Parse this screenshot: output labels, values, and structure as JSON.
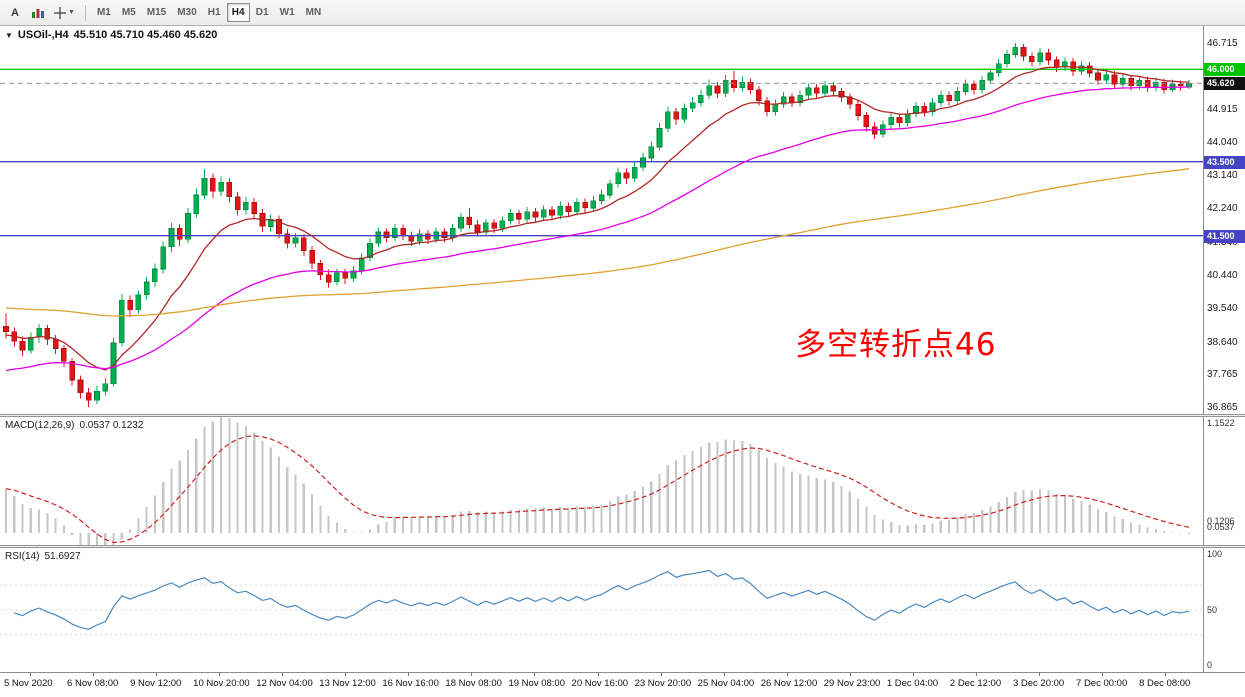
{
  "toolbar": {
    "annotate_label": "A",
    "timeframes": [
      "M1",
      "M5",
      "M15",
      "M30",
      "H1",
      "H4",
      "D1",
      "W1",
      "MN"
    ],
    "active_timeframe": "H4"
  },
  "chart": {
    "title_symbol": "USOil-,H4",
    "title_ohlc": "45.510 45.710 45.460 45.620",
    "annotation": "多空转折点46",
    "annotation_color": "#ff0000"
  },
  "chart_data": {
    "type": "candlestick",
    "symbol": "USOil-",
    "timeframe": "H4",
    "title": "USOil-,H4 45.510 45.710 45.460 45.620",
    "price_range": {
      "min": 36.68,
      "max": 47.17
    },
    "price_axis_labels": [
      "46.715",
      "44.915",
      "44.040",
      "43.140",
      "42.240",
      "41.340",
      "40.440",
      "39.540",
      "38.640",
      "37.765",
      "36.865"
    ],
    "price_badges": [
      {
        "label": "46.000",
        "value": 46.0,
        "color": "#00c400"
      },
      {
        "label": "45.620",
        "value": 45.62,
        "color": "#111111"
      },
      {
        "label": "43.500",
        "value": 43.5,
        "color": "#4545c4"
      },
      {
        "label": "41.500",
        "value": 41.5,
        "color": "#4545c4"
      }
    ],
    "hlines": [
      {
        "value": 46.0,
        "color": "#00cc00"
      },
      {
        "value": 43.5,
        "color": "#4545c4"
      },
      {
        "value": 41.5,
        "color": "#4545c4"
      }
    ],
    "current_price": 45.62,
    "colors": {
      "up": "#00b050",
      "up_border": "#00813a",
      "down": "#e01515",
      "down_border": "#9c0d0d"
    },
    "moving_averages": [
      {
        "name": "ma-fast",
        "color": "#b02828",
        "alpha": 0.16,
        "seed": 38.8
      },
      {
        "name": "ma-medium",
        "color": "#e300e3",
        "alpha": 0.05,
        "seed": 37.8
      },
      {
        "name": "ma-slow",
        "color": "#dfa232",
        "alpha": 0.012,
        "seed": 39.55
      }
    ],
    "indicators": {
      "macd": {
        "label": "MACD(12,26,9)",
        "values_text": "0.0537 0.1232",
        "fast": 12,
        "slow": 26,
        "signal": 9,
        "seed_fast": 39.2,
        "seed_slow": 38.7,
        "range": [
          -0.1206,
          1.1522
        ],
        "axis_labels": [
          {
            "text": "1.1522",
            "value": 1.1522
          },
          {
            "text": "0.1206",
            "value": 0.1206
          },
          {
            "text": "0.0537",
            "value": 0.0537
          }
        ],
        "histogram_color": "#c6c6c6",
        "signal_color": "#cc2222"
      },
      "rsi": {
        "label": "RSI(14)",
        "value_text": "51.6927",
        "period": 14,
        "range": [
          0,
          100
        ],
        "levels": [
          30,
          50,
          70
        ],
        "axis_labels": [
          {
            "text": "100",
            "value": 100
          },
          {
            "text": "50",
            "value": 50
          },
          {
            "text": "0",
            "value": 0
          }
        ],
        "color": "#4a8abf"
      }
    },
    "time_labels": [
      "5 Nov 2020",
      "6 Nov 08:00",
      "9 Nov 12:00",
      "10 Nov 20:00",
      "12 Nov 04:00",
      "13 Nov 12:00",
      "16 Nov 16:00",
      "18 Nov 08:00",
      "19 Nov 08:00",
      "20 Nov 16:00",
      "23 Nov 20:00",
      "25 Nov 04:00",
      "26 Nov 12:00",
      "29 Nov 23:00",
      "1 Dec 04:00",
      "2 Dec 12:00",
      "3 Dec 20:00",
      "7 Dec 00:00",
      "8 Dec 08:00"
    ],
    "candles": [
      [
        39.05,
        39.4,
        38.72,
        38.9
      ],
      [
        38.9,
        39.02,
        38.5,
        38.65
      ],
      [
        38.65,
        38.78,
        38.25,
        38.4
      ],
      [
        38.4,
        38.88,
        38.32,
        38.75
      ],
      [
        38.75,
        39.12,
        38.6,
        39.0
      ],
      [
        39.0,
        39.08,
        38.55,
        38.7
      ],
      [
        38.7,
        38.82,
        38.3,
        38.45
      ],
      [
        38.45,
        38.55,
        37.95,
        38.1
      ],
      [
        38.1,
        38.2,
        37.45,
        37.6
      ],
      [
        37.6,
        37.72,
        37.1,
        37.25
      ],
      [
        37.25,
        37.38,
        36.865,
        37.05
      ],
      [
        37.05,
        37.45,
        36.95,
        37.3
      ],
      [
        37.3,
        37.65,
        37.18,
        37.5
      ],
      [
        37.5,
        38.75,
        37.42,
        38.6
      ],
      [
        38.6,
        39.92,
        38.5,
        39.75
      ],
      [
        39.75,
        39.88,
        39.3,
        39.5
      ],
      [
        39.5,
        40.02,
        39.38,
        39.9
      ],
      [
        39.9,
        40.38,
        39.78,
        40.25
      ],
      [
        40.25,
        40.75,
        40.12,
        40.6
      ],
      [
        40.6,
        41.35,
        40.48,
        41.2
      ],
      [
        41.2,
        41.85,
        41.05,
        41.7
      ],
      [
        41.7,
        41.82,
        41.22,
        41.4
      ],
      [
        41.4,
        42.25,
        41.3,
        42.1
      ],
      [
        42.1,
        42.78,
        41.98,
        42.6
      ],
      [
        42.6,
        43.3,
        42.48,
        43.05
      ],
      [
        43.05,
        43.18,
        42.52,
        42.7
      ],
      [
        42.7,
        43.1,
        42.58,
        42.95
      ],
      [
        42.95,
        43.05,
        42.4,
        42.55
      ],
      [
        42.55,
        42.68,
        42.05,
        42.2
      ],
      [
        42.2,
        42.55,
        42.08,
        42.4
      ],
      [
        42.4,
        42.52,
        41.95,
        42.1
      ],
      [
        42.1,
        42.22,
        41.6,
        41.75
      ],
      [
        41.75,
        42.08,
        41.62,
        41.95
      ],
      [
        41.95,
        42.05,
        41.42,
        41.55
      ],
      [
        41.55,
        41.68,
        41.15,
        41.3
      ],
      [
        41.3,
        41.58,
        41.18,
        41.45
      ],
      [
        41.45,
        41.55,
        40.95,
        41.1
      ],
      [
        41.1,
        41.22,
        40.6,
        40.75
      ],
      [
        40.75,
        40.85,
        40.3,
        40.45
      ],
      [
        40.45,
        40.58,
        40.1,
        40.25
      ],
      [
        40.25,
        40.62,
        40.15,
        40.5
      ],
      [
        40.5,
        40.6,
        40.2,
        40.35
      ],
      [
        40.35,
        40.68,
        40.25,
        40.55
      ],
      [
        40.55,
        41.02,
        40.45,
        40.9
      ],
      [
        40.9,
        41.42,
        40.8,
        41.3
      ],
      [
        41.3,
        41.72,
        41.2,
        41.6
      ],
      [
        41.6,
        41.7,
        41.32,
        41.45
      ],
      [
        41.45,
        41.82,
        41.35,
        41.7
      ],
      [
        41.7,
        41.8,
        41.38,
        41.5
      ],
      [
        41.5,
        41.62,
        41.22,
        41.35
      ],
      [
        41.35,
        41.68,
        41.25,
        41.55
      ],
      [
        41.55,
        41.65,
        41.28,
        41.4
      ],
      [
        41.4,
        41.72,
        41.3,
        41.6
      ],
      [
        41.6,
        41.7,
        41.32,
        41.45
      ],
      [
        41.45,
        41.82,
        41.35,
        41.7
      ],
      [
        41.7,
        42.12,
        41.6,
        42.0
      ],
      [
        42.0,
        42.25,
        41.7,
        41.8
      ],
      [
        41.8,
        41.92,
        41.48,
        41.6
      ],
      [
        41.6,
        41.95,
        41.5,
        41.85
      ],
      [
        41.85,
        41.95,
        41.58,
        41.7
      ],
      [
        41.7,
        42.02,
        41.6,
        41.9
      ],
      [
        41.9,
        42.22,
        41.8,
        42.1
      ],
      [
        42.1,
        42.2,
        41.82,
        41.95
      ],
      [
        41.95,
        42.28,
        41.85,
        42.15
      ],
      [
        42.15,
        42.25,
        41.88,
        42.0
      ],
      [
        42.0,
        42.32,
        41.9,
        42.2
      ],
      [
        42.2,
        42.3,
        41.92,
        42.05
      ],
      [
        42.05,
        42.42,
        41.95,
        42.3
      ],
      [
        42.3,
        42.4,
        42.02,
        42.15
      ],
      [
        42.15,
        42.52,
        42.05,
        42.4
      ],
      [
        42.4,
        42.5,
        42.12,
        42.25
      ],
      [
        42.25,
        42.58,
        42.15,
        42.45
      ],
      [
        42.45,
        42.75,
        42.35,
        42.6
      ],
      [
        42.6,
        43.02,
        42.5,
        42.9
      ],
      [
        42.9,
        43.35,
        42.8,
        43.2
      ],
      [
        43.2,
        43.32,
        42.9,
        43.05
      ],
      [
        43.05,
        43.48,
        42.95,
        43.35
      ],
      [
        43.35,
        43.75,
        43.25,
        43.6
      ],
      [
        43.6,
        44.05,
        43.5,
        43.9
      ],
      [
        43.9,
        44.55,
        43.8,
        44.4
      ],
      [
        44.4,
        45.0,
        44.3,
        44.85
      ],
      [
        44.85,
        44.95,
        44.5,
        44.65
      ],
      [
        44.65,
        45.08,
        44.55,
        44.95
      ],
      [
        44.95,
        45.25,
        44.85,
        45.1
      ],
      [
        45.1,
        45.45,
        45.0,
        45.3
      ],
      [
        45.3,
        45.72,
        45.2,
        45.55
      ],
      [
        45.55,
        45.65,
        45.22,
        45.35
      ],
      [
        45.35,
        45.85,
        45.25,
        45.7
      ],
      [
        45.7,
        45.95,
        45.38,
        45.5
      ],
      [
        45.5,
        45.8,
        45.4,
        45.65
      ],
      [
        45.65,
        45.75,
        45.32,
        45.45
      ],
      [
        45.45,
        45.55,
        45.02,
        45.15
      ],
      [
        45.15,
        45.25,
        44.72,
        44.85
      ],
      [
        44.85,
        45.18,
        44.75,
        45.05
      ],
      [
        45.05,
        45.38,
        44.95,
        45.25
      ],
      [
        45.25,
        45.35,
        44.98,
        45.1
      ],
      [
        45.1,
        45.42,
        45.0,
        45.3
      ],
      [
        45.3,
        45.62,
        45.2,
        45.5
      ],
      [
        45.5,
        45.6,
        45.22,
        45.35
      ],
      [
        45.35,
        45.68,
        45.25,
        45.55
      ],
      [
        45.55,
        45.65,
        45.28,
        45.4
      ],
      [
        45.4,
        45.5,
        45.12,
        45.25
      ],
      [
        45.25,
        45.35,
        44.92,
        45.05
      ],
      [
        45.05,
        45.15,
        44.62,
        44.75
      ],
      [
        44.75,
        44.85,
        44.32,
        44.45
      ],
      [
        44.45,
        44.58,
        44.12,
        44.25
      ],
      [
        44.25,
        44.62,
        44.15,
        44.5
      ],
      [
        44.5,
        44.82,
        44.4,
        44.7
      ],
      [
        44.7,
        44.8,
        44.42,
        44.55
      ],
      [
        44.55,
        44.92,
        44.45,
        44.8
      ],
      [
        44.8,
        45.12,
        44.7,
        45.0
      ],
      [
        45.0,
        45.1,
        44.72,
        44.85
      ],
      [
        44.85,
        45.22,
        44.75,
        45.1
      ],
      [
        45.1,
        45.42,
        45.0,
        45.3
      ],
      [
        45.3,
        45.4,
        45.02,
        45.15
      ],
      [
        45.15,
        45.52,
        45.05,
        45.4
      ],
      [
        45.4,
        45.72,
        45.3,
        45.6
      ],
      [
        45.6,
        45.7,
        45.32,
        45.45
      ],
      [
        45.45,
        45.82,
        45.35,
        45.7
      ],
      [
        45.7,
        46.02,
        45.6,
        45.9
      ],
      [
        45.9,
        46.28,
        45.8,
        46.15
      ],
      [
        46.15,
        46.52,
        46.05,
        46.4
      ],
      [
        46.4,
        46.715,
        46.3,
        46.6
      ],
      [
        46.6,
        46.68,
        46.22,
        46.35
      ],
      [
        46.35,
        46.45,
        46.08,
        46.2
      ],
      [
        46.2,
        46.58,
        46.1,
        46.45
      ],
      [
        46.45,
        46.55,
        46.12,
        46.25
      ],
      [
        46.25,
        46.35,
        45.92,
        46.05
      ],
      [
        46.05,
        46.32,
        45.95,
        46.2
      ],
      [
        46.2,
        46.3,
        45.82,
        45.95
      ],
      [
        45.95,
        46.22,
        45.85,
        46.1
      ],
      [
        46.1,
        46.2,
        45.78,
        45.9
      ],
      [
        45.9,
        46.0,
        45.58,
        45.7
      ],
      [
        45.7,
        45.98,
        45.6,
        45.85
      ],
      [
        45.85,
        45.95,
        45.48,
        45.6
      ],
      [
        45.6,
        45.88,
        45.5,
        45.75
      ],
      [
        45.75,
        45.85,
        45.42,
        45.55
      ],
      [
        45.55,
        45.82,
        45.45,
        45.7
      ],
      [
        45.7,
        45.8,
        45.38,
        45.5
      ],
      [
        45.5,
        45.78,
        45.4,
        45.65
      ],
      [
        45.65,
        45.75,
        45.35,
        45.45
      ],
      [
        45.45,
        45.72,
        45.38,
        45.6
      ],
      [
        45.6,
        45.7,
        45.42,
        45.55
      ],
      [
        45.51,
        45.71,
        45.46,
        45.62
      ]
    ]
  }
}
